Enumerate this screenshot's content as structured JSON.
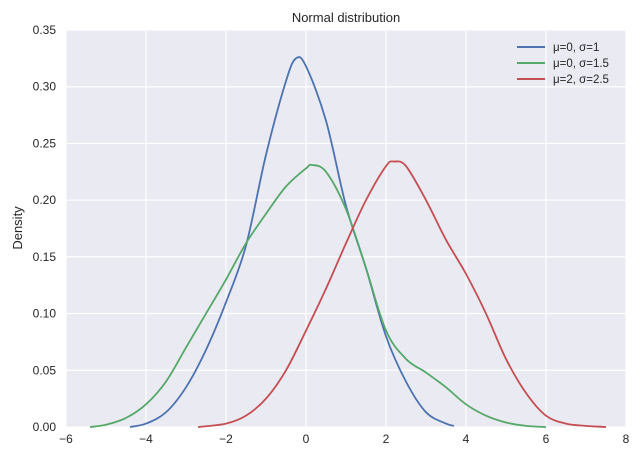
{
  "chart_data": {
    "type": "line",
    "title": "Normal distribution",
    "xlabel": "",
    "ylabel": "Density",
    "xlim": [
      -6,
      8
    ],
    "ylim": [
      0,
      0.35
    ],
    "xticks": [
      -6,
      -4,
      -2,
      0,
      2,
      4,
      6,
      8
    ],
    "xtick_labels": [
      "−6",
      "−4",
      "−2",
      "0",
      "2",
      "4",
      "6",
      "8"
    ],
    "yticks": [
      0,
      0.05,
      0.1,
      0.15,
      0.2,
      0.25,
      0.3,
      0.35
    ],
    "ytick_labels": [
      "0.00",
      "0.05",
      "0.10",
      "0.15",
      "0.20",
      "0.25",
      "0.30",
      "0.35"
    ],
    "grid": true,
    "legend_position": "top-right",
    "background": "#eaeaf2",
    "series": [
      {
        "name": "μ=0, σ=1",
        "color": "#4c72b0",
        "x": [
          -4.4,
          -4,
          -3.5,
          -3,
          -2.5,
          -2,
          -1.5,
          -1,
          -0.5,
          -0.25,
          0,
          0.5,
          1,
          1.5,
          2,
          2.5,
          3,
          3.5,
          3.7
        ],
        "y": [
          0,
          0.003,
          0.013,
          0.035,
          0.068,
          0.11,
          0.16,
          0.24,
          0.305,
          0.325,
          0.318,
          0.27,
          0.195,
          0.14,
          0.08,
          0.04,
          0.013,
          0.003,
          0.001
        ]
      },
      {
        "name": "μ=0, σ=1.5",
        "color": "#55a868",
        "x": [
          -5.4,
          -5,
          -4.5,
          -4,
          -3.5,
          -3,
          -2.5,
          -2,
          -1.5,
          -1,
          -0.5,
          0,
          0.15,
          0.5,
          1,
          1.5,
          2,
          2.5,
          3,
          3.5,
          4,
          4.5,
          5,
          5.5,
          6
        ],
        "y": [
          0,
          0.002,
          0.008,
          0.02,
          0.04,
          0.07,
          0.1,
          0.13,
          0.162,
          0.188,
          0.212,
          0.228,
          0.231,
          0.225,
          0.192,
          0.14,
          0.085,
          0.06,
          0.048,
          0.035,
          0.02,
          0.01,
          0.004,
          0.001,
          0
        ]
      },
      {
        "name": "μ=2, σ=2.5",
        "color": "#c44e52",
        "x": [
          -2.7,
          -2,
          -1.5,
          -1,
          -0.5,
          0,
          0.5,
          1,
          1.5,
          2,
          2.2,
          2.5,
          3,
          3.5,
          4,
          4.5,
          5,
          5.5,
          6,
          6.5,
          7,
          7.5
        ],
        "y": [
          0,
          0.003,
          0.01,
          0.025,
          0.05,
          0.085,
          0.122,
          0.162,
          0.2,
          0.23,
          0.234,
          0.23,
          0.2,
          0.165,
          0.135,
          0.1,
          0.06,
          0.03,
          0.01,
          0.003,
          0.001,
          0
        ]
      }
    ]
  }
}
